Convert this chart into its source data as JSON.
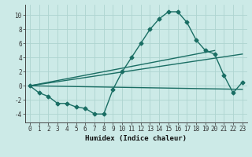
{
  "xlabel": "Humidex (Indice chaleur)",
  "background_color": "#cceae7",
  "line_color": "#1a6e64",
  "grid_color": "#aed4d0",
  "xlim": [
    -0.5,
    23.5
  ],
  "ylim": [
    -5.2,
    11.5
  ],
  "xticks": [
    0,
    1,
    2,
    3,
    4,
    5,
    6,
    7,
    8,
    9,
    10,
    11,
    12,
    13,
    14,
    15,
    16,
    17,
    18,
    19,
    20,
    21,
    22,
    23
  ],
  "yticks": [
    -4,
    -2,
    0,
    2,
    4,
    6,
    8,
    10
  ],
  "main_x": [
    0,
    1,
    2,
    3,
    4,
    5,
    6,
    7,
    8,
    9,
    10,
    11,
    12,
    13,
    14,
    15,
    16,
    17,
    18,
    19,
    20,
    21,
    22,
    23
  ],
  "main_y": [
    0,
    -1,
    -1.5,
    -2.5,
    -2.5,
    -3,
    -3.2,
    -4,
    -4,
    -0.5,
    2,
    4,
    6,
    8,
    9.5,
    10.5,
    10.5,
    9,
    6.5,
    5,
    4.5,
    1.5,
    -1,
    0.5
  ],
  "line1_x": [
    0,
    20
  ],
  "line1_y": [
    0,
    5
  ],
  "line2_x": [
    0,
    23
  ],
  "line2_y": [
    0,
    4.5
  ],
  "line3_x": [
    0,
    23
  ],
  "line3_y": [
    0,
    -0.5
  ],
  "marker_size": 2.5,
  "line_width": 1.0,
  "font_size_label": 6.5,
  "font_size_tick": 5.5
}
